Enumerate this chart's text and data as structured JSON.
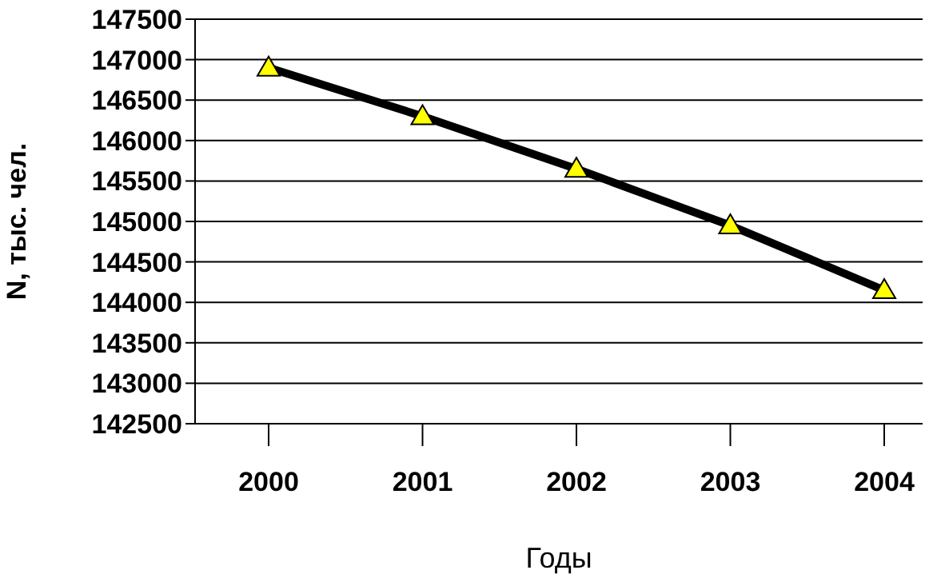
{
  "chart_data": {
    "type": "line",
    "xlabel": "Годы",
    "ylabel": "N, тыс. чел.",
    "categories": [
      "2000",
      "2001",
      "2002",
      "2003",
      "2004"
    ],
    "series": [
      {
        "color": "#000000",
        "values": [
          146900,
          146300,
          145650,
          144950,
          144150
        ]
      }
    ],
    "ylim": [
      142500,
      147500
    ],
    "yticks": [
      142500,
      143000,
      143500,
      144000,
      144500,
      145000,
      145500,
      146000,
      146500,
      147000,
      147500
    ],
    "grid": "y",
    "marker": "triangle",
    "line_style": "solid"
  }
}
